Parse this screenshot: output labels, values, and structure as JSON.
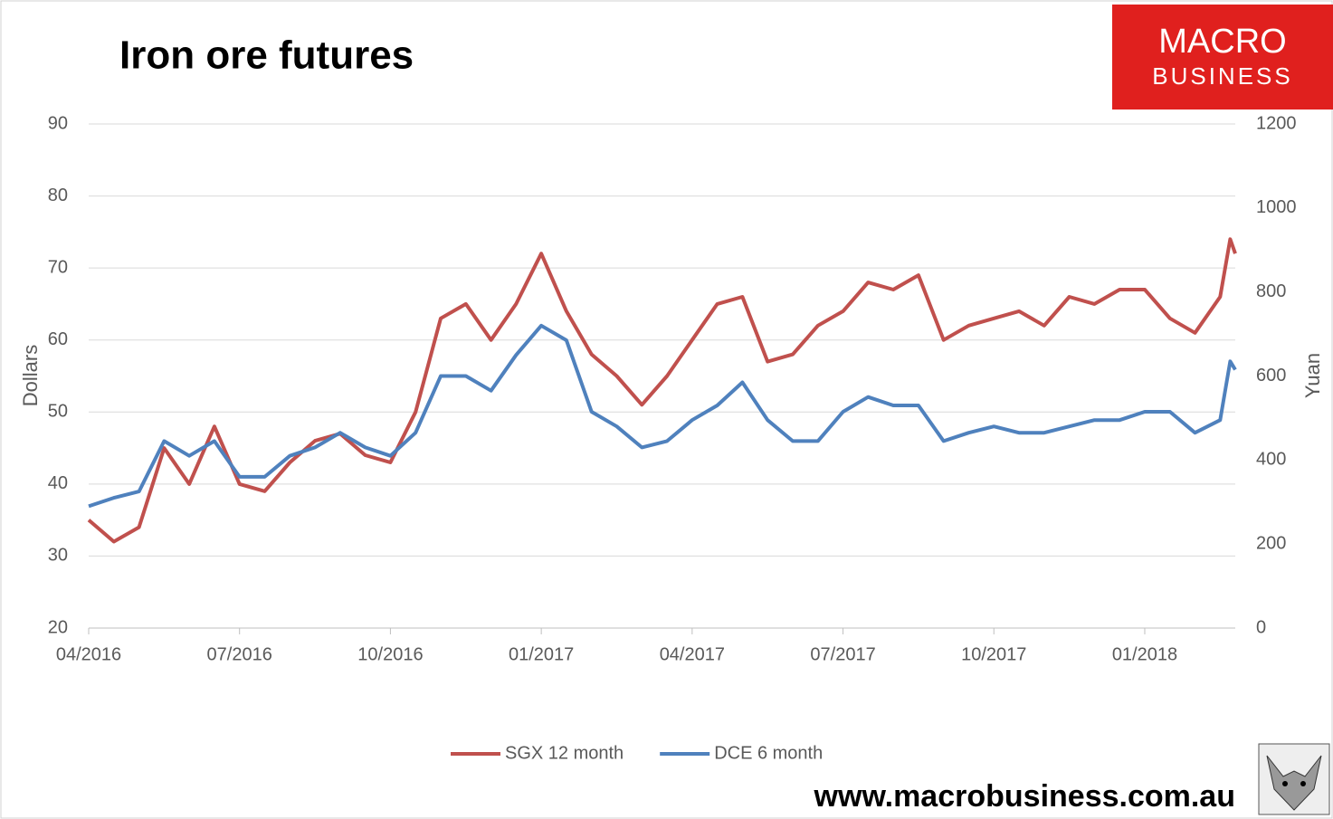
{
  "chart_data": {
    "type": "line",
    "title": "Iron ore futures",
    "y_label": "Dollars",
    "y2_label": "Yuan",
    "x": [
      0,
      0.5,
      1,
      1.5,
      2,
      2.5,
      3,
      3.5,
      4,
      4.5,
      5,
      5.5,
      6,
      6.5,
      7,
      7.5,
      8,
      8.5,
      9,
      9.5,
      10,
      10.5,
      11,
      11.5,
      12,
      12.5,
      13,
      13.5,
      14,
      14.5,
      15,
      15.5,
      16,
      16.5,
      17,
      17.5,
      18,
      18.5,
      19,
      19.5,
      20,
      20.5,
      21,
      21.5,
      22,
      22.5,
      22.7,
      22.8
    ],
    "xlim": [
      0,
      22.8
    ],
    "xticks": [
      {
        "value": 0,
        "label": "04/2016"
      },
      {
        "value": 3,
        "label": "07/2016"
      },
      {
        "value": 6,
        "label": "10/2016"
      },
      {
        "value": 9,
        "label": "01/2017"
      },
      {
        "value": 12,
        "label": "04/2017"
      },
      {
        "value": 15,
        "label": "07/2017"
      },
      {
        "value": 18,
        "label": "10/2017"
      },
      {
        "value": 21,
        "label": "01/2018"
      }
    ],
    "ylim": [
      20,
      90
    ],
    "yticks": [
      20,
      30,
      40,
      50,
      60,
      70,
      80,
      90
    ],
    "y2lim": [
      0,
      1200
    ],
    "y2ticks": [
      0,
      200,
      400,
      600,
      800,
      1000,
      1200
    ],
    "grid": true,
    "legend": "bottom",
    "series": [
      {
        "name": "SGX 12 month",
        "color": "#c0504d",
        "values": [
          35,
          32,
          34,
          45,
          40,
          48,
          40,
          39,
          43,
          46,
          47,
          44,
          43,
          50,
          63,
          65,
          60,
          65,
          72,
          64,
          58,
          55,
          51,
          55,
          60,
          65,
          66,
          57,
          58,
          62,
          64,
          68,
          67,
          69,
          60,
          62,
          63,
          64,
          62,
          66,
          65,
          67,
          67,
          63,
          61,
          66,
          74,
          72
        ]
      },
      {
        "name": "DCE 6 month",
        "color": "#4f81bd",
        "axis": "y2",
        "values": [
          290,
          310,
          325,
          445,
          410,
          445,
          360,
          360,
          410,
          430,
          465,
          430,
          410,
          465,
          600,
          600,
          565,
          650,
          720,
          685,
          515,
          480,
          430,
          445,
          495,
          530,
          585,
          495,
          445,
          445,
          515,
          550,
          530,
          530,
          445,
          465,
          480,
          465,
          465,
          480,
          495,
          495,
          515,
          515,
          465,
          495,
          635,
          615
        ]
      }
    ]
  },
  "branding": {
    "logo_top": "MACRO",
    "logo_bottom": "BUSINESS",
    "url": "www.macrobusiness.com.au"
  }
}
